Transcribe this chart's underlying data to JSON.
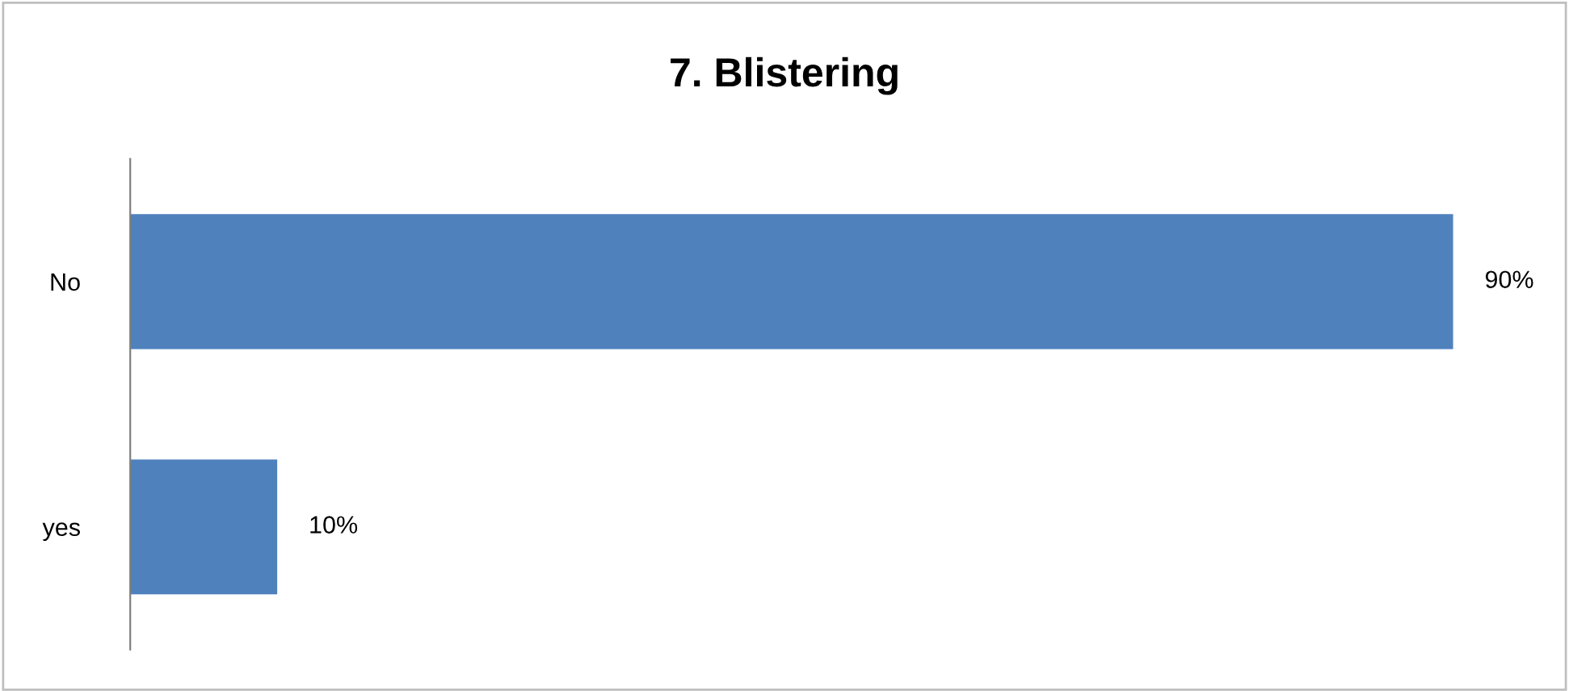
{
  "chart_data": {
    "type": "bar",
    "orientation": "horizontal",
    "title": "7. Blistering",
    "categories": [
      "No",
      "yes"
    ],
    "values": [
      90,
      10
    ],
    "value_labels": [
      "90%",
      "10%"
    ],
    "color": "#4f81bd",
    "grid": false,
    "legend": false
  }
}
